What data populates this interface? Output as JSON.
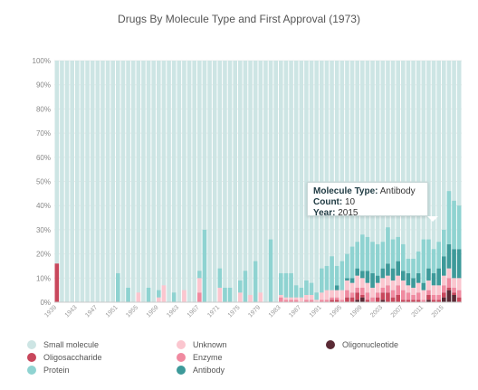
{
  "chart_data": {
    "type": "bar",
    "stacked": true,
    "title": "Drugs By Molecule Type and First Approval (1973)",
    "xlabel": "",
    "ylabel": "",
    "ylim": [
      0,
      100
    ],
    "ytick_labels": [
      "0%",
      "10%",
      "20%",
      "30%",
      "40%",
      "50%",
      "60%",
      "70%",
      "80%",
      "90%",
      "100%"
    ],
    "xtick_labels": [
      "1939",
      "1943",
      "1947",
      "1951",
      "1955",
      "1959",
      "1963",
      "1967",
      "1971",
      "1975",
      "1979",
      "1983",
      "1987",
      "1991",
      "1995",
      "1999",
      "2003",
      "2007",
      "2011",
      "2015"
    ],
    "grid": true,
    "legend_position": "bottom",
    "categories": [
      "1939",
      "1940",
      "1941",
      "1942",
      "1943",
      "1944",
      "1945",
      "1946",
      "1947",
      "1948",
      "1949",
      "1950",
      "1951",
      "1952",
      "1953",
      "1954",
      "1955",
      "1956",
      "1957",
      "1958",
      "1959",
      "1960",
      "1961",
      "1962",
      "1963",
      "1964",
      "1965",
      "1966",
      "1967",
      "1968",
      "1969",
      "1970",
      "1971",
      "1972",
      "1973",
      "1974",
      "1975",
      "1976",
      "1977",
      "1978",
      "1979",
      "1980",
      "1981",
      "1982",
      "1983",
      "1984",
      "1985",
      "1986",
      "1987",
      "1988",
      "1989",
      "1990",
      "1991",
      "1992",
      "1993",
      "1994",
      "1995",
      "1996",
      "1997",
      "1998",
      "1999",
      "2000",
      "2001",
      "2002",
      "2003",
      "2004",
      "2005",
      "2006",
      "2007",
      "2008",
      "2009",
      "2010",
      "2011",
      "2012",
      "2013",
      "2014",
      "2015",
      "2016",
      "2017",
      "2018"
    ],
    "series": [
      {
        "name": "Oligonucleotide",
        "color": "#5a2a35",
        "values": [
          0,
          0,
          0,
          0,
          0,
          0,
          0,
          0,
          0,
          0,
          0,
          0,
          0,
          0,
          0,
          0,
          0,
          0,
          0,
          0,
          0,
          0,
          0,
          0,
          0,
          0,
          0,
          0,
          0,
          0,
          0,
          0,
          0,
          0,
          0,
          0,
          0,
          0,
          0,
          0,
          0,
          0,
          0,
          0,
          0,
          0,
          0,
          0,
          0,
          0,
          0,
          0,
          0,
          0,
          0,
          0,
          0,
          0,
          0,
          1,
          2,
          0,
          0,
          0,
          1,
          0,
          0,
          0,
          0,
          0,
          0,
          0,
          0,
          1,
          0,
          0,
          2,
          5,
          3,
          0
        ]
      },
      {
        "name": "Oligosaccharide",
        "color": "#c8475c",
        "values": [
          16,
          0,
          0,
          0,
          0,
          0,
          0,
          0,
          0,
          0,
          0,
          0,
          0,
          0,
          0,
          0,
          0,
          0,
          0,
          0,
          0,
          0,
          0,
          0,
          0,
          0,
          0,
          0,
          0,
          0,
          0,
          0,
          0,
          0,
          0,
          0,
          0,
          0,
          0,
          0,
          0,
          0,
          0,
          0,
          0,
          0,
          0,
          0,
          0,
          0,
          0,
          0,
          0,
          0,
          1,
          1,
          0,
          2,
          2,
          3,
          1,
          1,
          0,
          2,
          3,
          4,
          2,
          3,
          1,
          1,
          1,
          1,
          0,
          2,
          1,
          1,
          2,
          1,
          1,
          2
        ]
      },
      {
        "name": "Enzyme",
        "color": "#f08aa0",
        "values": [
          0,
          0,
          0,
          0,
          0,
          0,
          0,
          0,
          0,
          0,
          0,
          0,
          0,
          0,
          0,
          0,
          0,
          0,
          0,
          0,
          0,
          0,
          0,
          0,
          0,
          0,
          0,
          0,
          4,
          0,
          0,
          0,
          0,
          0,
          0,
          0,
          0,
          0,
          0,
          0,
          0,
          0,
          0,
          0,
          2,
          1,
          1,
          1,
          0,
          1,
          1,
          0,
          1,
          1,
          1,
          1,
          1,
          3,
          2,
          2,
          3,
          3,
          2,
          2,
          2,
          3,
          3,
          4,
          4,
          3,
          2,
          3,
          1,
          2,
          2,
          2,
          3,
          4,
          2,
          3
        ]
      },
      {
        "name": "Unknown",
        "color": "#fbc6cf",
        "values": [
          0,
          0,
          0,
          0,
          0,
          0,
          0,
          0,
          0,
          0,
          0,
          0,
          0,
          0,
          0,
          0,
          4,
          0,
          0,
          0,
          2,
          7,
          0,
          0,
          0,
          5,
          0,
          0,
          6,
          0,
          0,
          0,
          6,
          0,
          0,
          0,
          4,
          0,
          3,
          0,
          4,
          0,
          0,
          0,
          1,
          1,
          1,
          1,
          2,
          2,
          2,
          1,
          3,
          4,
          3,
          3,
          4,
          4,
          4,
          5,
          4,
          4,
          4,
          4,
          4,
          4,
          4,
          4,
          4,
          3,
          3,
          4,
          4,
          4,
          4,
          4,
          4,
          4,
          4,
          5
        ]
      },
      {
        "name": "Antibody",
        "color": "#3d9a9a",
        "values": [
          0,
          0,
          0,
          0,
          0,
          0,
          0,
          0,
          0,
          0,
          0,
          0,
          0,
          0,
          0,
          0,
          0,
          0,
          0,
          0,
          0,
          0,
          0,
          0,
          0,
          0,
          0,
          0,
          0,
          0,
          0,
          0,
          0,
          0,
          0,
          0,
          0,
          0,
          0,
          0,
          0,
          0,
          0,
          0,
          0,
          0,
          0,
          0,
          0,
          0,
          0,
          0,
          0,
          0,
          0,
          2,
          0,
          1,
          2,
          3,
          3,
          5,
          6,
          3,
          4,
          5,
          5,
          6,
          4,
          5,
          4,
          4,
          3,
          5,
          5,
          7,
          8,
          10,
          12,
          12
        ]
      },
      {
        "name": "Protein",
        "color": "#8fd3d1",
        "values": [
          0,
          0,
          0,
          0,
          0,
          0,
          0,
          0,
          0,
          0,
          0,
          0,
          12,
          0,
          6,
          0,
          0,
          0,
          6,
          0,
          3,
          0,
          0,
          4,
          0,
          0,
          0,
          0,
          3,
          30,
          0,
          0,
          8,
          6,
          6,
          0,
          5,
          13,
          0,
          17,
          0,
          0,
          26,
          0,
          9,
          10,
          10,
          5,
          4,
          6,
          5,
          3,
          10,
          10,
          14,
          8,
          12,
          10,
          13,
          11,
          15,
          14,
          13,
          13,
          11,
          15,
          12,
          10,
          11,
          6,
          8,
          9,
          18,
          12,
          10,
          11,
          11,
          22,
          20,
          18
        ]
      }
    ],
    "remainder_series": {
      "name": "Small molecule",
      "color": "#cde5e4"
    },
    "tooltip": {
      "type_label": "Molecule Type:",
      "type_value": "Antibody",
      "count_label": "Count:",
      "count_value": "10",
      "year_label": "Year:",
      "year_value": "2015"
    }
  },
  "legend": [
    {
      "label": "Small molecule",
      "color": "#cde5e4"
    },
    {
      "label": "Oligosaccharide",
      "color": "#c8475c"
    },
    {
      "label": "Protein",
      "color": "#8fd3d1"
    },
    {
      "label": "Unknown",
      "color": "#fbc6cf"
    },
    {
      "label": "Enzyme",
      "color": "#f08aa0"
    },
    {
      "label": "Antibody",
      "color": "#3d9a9a"
    },
    {
      "label": "Oligonucleotide",
      "color": "#5a2a35"
    }
  ]
}
